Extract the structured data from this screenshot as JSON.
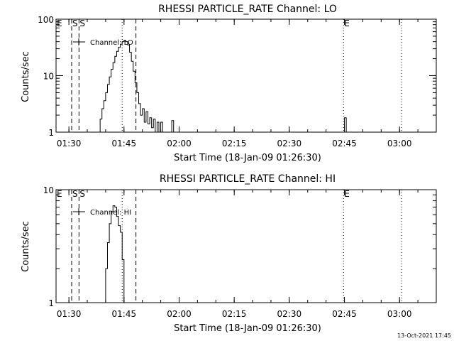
{
  "chart_data": [
    {
      "type": "line",
      "title": "RHESSI PARTICLE_RATE Channel: LO",
      "xlabel": "Start Time (18-Jan-09 01:26:30)",
      "ylabel": "Counts/sec",
      "yscale": "log",
      "ylim": [
        1,
        100
      ],
      "xlim": [
        "01:26:30",
        "03:10:00"
      ],
      "x_ticks": [
        "01:30",
        "01:45",
        "02:00",
        "02:15",
        "02:30",
        "02:45",
        "03:00"
      ],
      "y_ticks": [
        "1",
        "10",
        "100"
      ],
      "legend": "Channel: LO",
      "markers": [
        {
          "label": "E",
          "time": "01:26:30",
          "style": "none"
        },
        {
          "label": "S",
          "time": "01:30:45",
          "style": "dashed"
        },
        {
          "label": "S",
          "time": "01:32:45",
          "style": "dashed"
        },
        {
          "label": "",
          "time": "01:44:30",
          "style": "dotted"
        },
        {
          "label": "",
          "time": "01:48:15",
          "style": "dashed"
        },
        {
          "label": "E",
          "time": "02:44:45",
          "style": "dotted"
        },
        {
          "label": "",
          "time": "03:00:30",
          "style": "dotted"
        }
      ],
      "series": [
        {
          "x": [
            "01:38:00",
            "01:38:30",
            "01:39:00",
            "01:39:30",
            "01:40:00",
            "01:40:30",
            "01:41:00",
            "01:41:30",
            "01:42:00",
            "01:42:30",
            "01:43:00",
            "01:43:30",
            "01:44:00",
            "01:44:30",
            "01:45:00",
            "01:45:30",
            "01:46:00",
            "01:46:30",
            "01:47:00",
            "01:47:30",
            "01:48:00",
            "01:48:30",
            "01:49:00",
            "01:49:30",
            "01:50:00",
            "01:50:30",
            "01:51:00",
            "01:51:30",
            "01:52:00",
            "01:52:30",
            "01:53:00",
            "01:53:30",
            "01:54:00",
            "01:54:30",
            "01:55:00",
            "01:55:30",
            "01:56:00",
            "01:56:30",
            "01:57:00",
            "01:57:30",
            "01:58:00",
            "01:58:30",
            "01:59:00",
            "02:44:30",
            "02:45:00",
            "02:45:30"
          ],
          "y": [
            1.0,
            1.7,
            2.6,
            3.6,
            5.0,
            7.0,
            9.5,
            13,
            17,
            22,
            27,
            32,
            36,
            40,
            42,
            40,
            35,
            26,
            18,
            12,
            7.5,
            5.0,
            3.2,
            2.0,
            2.6,
            1.5,
            2.3,
            1.4,
            1.8,
            1.2,
            1.7,
            1.0,
            1.5,
            1.0,
            1.5,
            1.0,
            1.0,
            1.0,
            1.0,
            1.0,
            1.6,
            1.0,
            1.0,
            1.0,
            1.8,
            1.0
          ]
        }
      ]
    },
    {
      "type": "line",
      "title": "RHESSI PARTICLE_RATE Channel: HI",
      "xlabel": "Start Time (18-Jan-09 01:26:30)",
      "ylabel": "Counts/sec",
      "yscale": "log",
      "ylim": [
        1,
        10
      ],
      "xlim": [
        "01:26:30",
        "03:10:00"
      ],
      "x_ticks": [
        "01:30",
        "01:45",
        "02:00",
        "02:15",
        "02:30",
        "02:45",
        "03:00"
      ],
      "y_ticks": [
        "1",
        "10"
      ],
      "legend": "Channel: HI",
      "markers": [
        {
          "label": "E",
          "time": "01:26:30",
          "style": "none"
        },
        {
          "label": "S",
          "time": "01:30:45",
          "style": "dashed"
        },
        {
          "label": "S",
          "time": "01:32:45",
          "style": "dashed"
        },
        {
          "label": "",
          "time": "01:44:30",
          "style": "dotted"
        },
        {
          "label": "",
          "time": "01:48:15",
          "style": "dashed"
        },
        {
          "label": "E",
          "time": "02:44:45",
          "style": "dotted"
        },
        {
          "label": "",
          "time": "03:00:30",
          "style": "dotted"
        }
      ],
      "series": [
        {
          "x": [
            "01:39:30",
            "01:40:00",
            "01:40:30",
            "01:41:00",
            "01:41:30",
            "01:42:00",
            "01:42:30",
            "01:43:00",
            "01:43:30",
            "01:44:00",
            "01:44:30",
            "01:45:00"
          ],
          "y": [
            1.0,
            2.0,
            3.4,
            5.0,
            6.4,
            7.2,
            7.0,
            5.8,
            4.8,
            4.2,
            2.4,
            1.0
          ]
        }
      ]
    }
  ],
  "footer": {
    "timestamp": "13-Oct-2021 17:45"
  }
}
